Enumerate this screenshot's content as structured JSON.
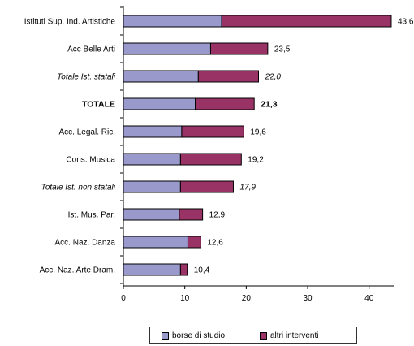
{
  "chart_data": {
    "type": "bar",
    "orientation": "horizontal",
    "stacked": true,
    "categories": [
      "Istituti Sup. Ind. Artistiche",
      "Acc Belle Arti",
      "Totale Ist. statali",
      "TOTALE",
      "Acc. Legal. Ric.",
      "Cons. Musica",
      "Totale Ist. non statali",
      "Ist. Mus. Par.",
      "Acc. Naz. Danza",
      "Acc. Naz. Arte Dram."
    ],
    "category_styles": [
      "normal",
      "normal",
      "italic",
      "bold",
      "normal",
      "normal",
      "italic",
      "normal",
      "normal",
      "normal"
    ],
    "series": [
      {
        "name": "borse di studio",
        "color": "#9999cc",
        "values": [
          16.0,
          14.2,
          12.2,
          11.7,
          9.5,
          9.3,
          9.3,
          9.1,
          10.5,
          9.3
        ]
      },
      {
        "name": "altri interventi",
        "color": "#993366",
        "values": [
          27.6,
          9.3,
          9.8,
          9.6,
          10.1,
          9.9,
          8.6,
          3.8,
          2.1,
          1.1
        ]
      }
    ],
    "totals_labels": [
      "43,6",
      "23,5",
      "22,0",
      "21,3",
      "19,6",
      "19,2",
      "17,9",
      "12,9",
      "12,6",
      "10,4"
    ],
    "xlim": [
      0,
      44
    ],
    "xticks": [
      "0",
      "10",
      "20",
      "30",
      "40"
    ],
    "xtick_values": [
      0,
      10,
      20,
      30,
      40
    ],
    "legend_position": "bottom",
    "grid": false
  }
}
